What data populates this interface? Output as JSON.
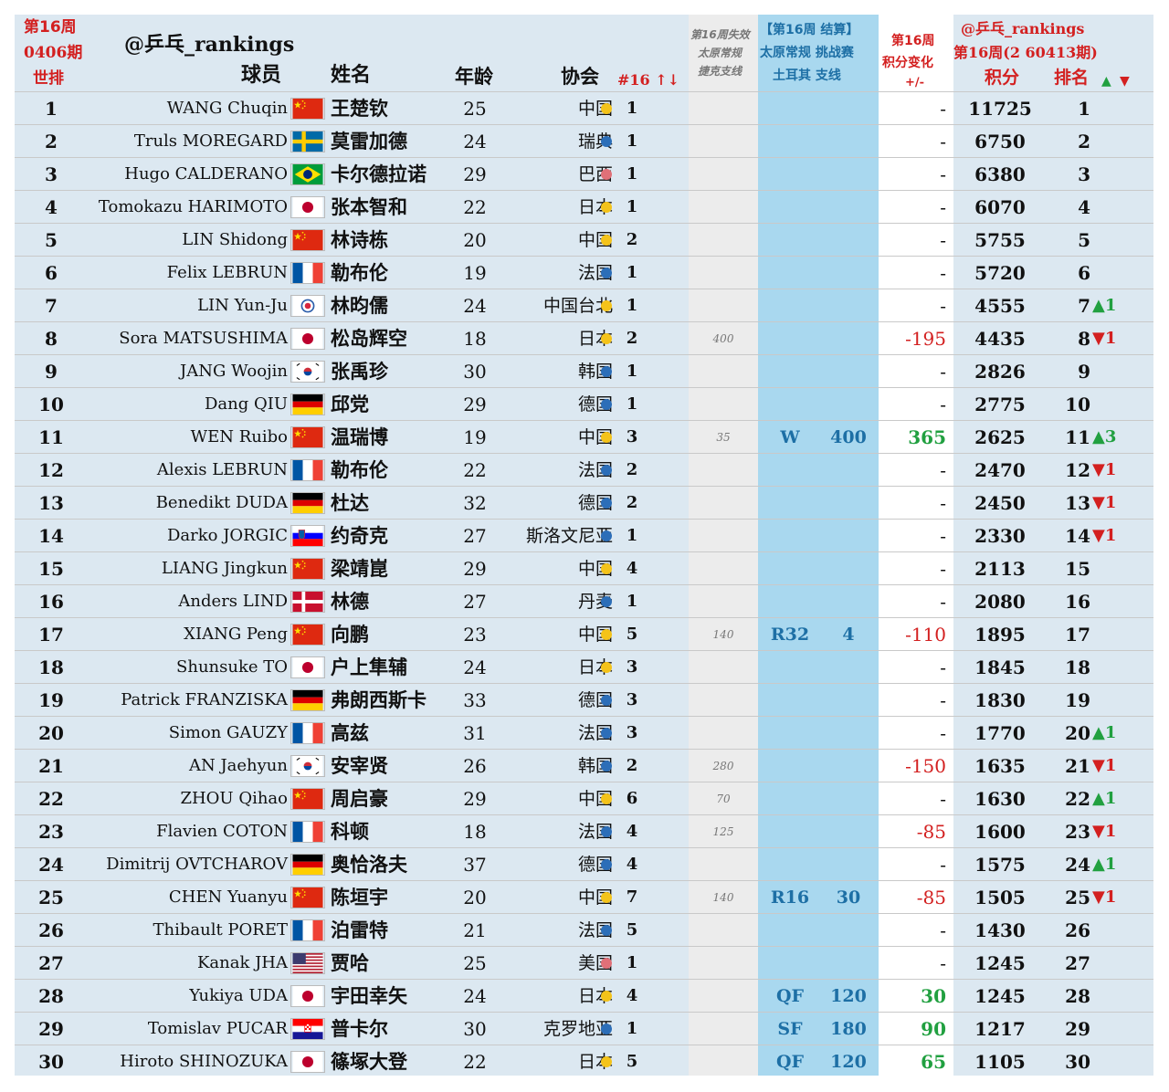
{
  "header": {
    "week_label": "第16周",
    "period_label": "0406期",
    "world_rank_label": "世排",
    "watermark": "@乒乓_rankings",
    "player_label": "球员",
    "name_label": "姓名",
    "age_label": "年龄",
    "assoc_label": "协会",
    "num16_label": "#16 ↑↓",
    "lost_label": [
      "第16周失效",
      "太原常规",
      "捷克支线"
    ],
    "settle_label": [
      "【第16周 结算】",
      "太原常规 挑战赛",
      "土耳其 支线"
    ],
    "change_label": [
      "第16周",
      "积分变化",
      "+/-"
    ],
    "new_watermark": "@乒乓_rankings",
    "new_period": "第16周(2 60413期)",
    "points_label": "积分",
    "newrank_label": "排名",
    "up_arrow": "▲",
    "down_arrow": "▼"
  },
  "colors": {
    "dot_yellow": "#f4c31a",
    "dot_blue": "#2c6eb8",
    "dot_pink": "#e07078",
    "row_bg": "#dce8f1",
    "col_bg": "#a9d8ef",
    "col_gray": "#ececec"
  },
  "rows": [
    {
      "rank": "1",
      "name": "WANG Chuqin",
      "flag": "CN",
      "cname": "王楚钦",
      "age": "25",
      "assoc": "中国",
      "dot": "yellow",
      "n16": "1",
      "lost": "",
      "res": "",
      "gain": "",
      "chg": "-",
      "pts": "11725",
      "nrk": "1",
      "mv": ""
    },
    {
      "rank": "2",
      "name": "Truls MOREGARD",
      "flag": "SE",
      "cname": "莫雷加德",
      "age": "24",
      "assoc": "瑞典",
      "dot": "blue",
      "n16": "1",
      "lost": "",
      "res": "",
      "gain": "",
      "chg": "-",
      "pts": "6750",
      "nrk": "2",
      "mv": ""
    },
    {
      "rank": "3",
      "name": "Hugo CALDERANO",
      "flag": "BR",
      "cname": "卡尔德拉诺",
      "age": "29",
      "assoc": "巴西",
      "dot": "pink",
      "n16": "1",
      "lost": "",
      "res": "",
      "gain": "",
      "chg": "-",
      "pts": "6380",
      "nrk": "3",
      "mv": ""
    },
    {
      "rank": "4",
      "name": "Tomokazu HARIMOTO",
      "flag": "JP",
      "cname": "张本智和",
      "age": "22",
      "assoc": "日本",
      "dot": "yellow",
      "n16": "1",
      "lost": "",
      "res": "",
      "gain": "",
      "chg": "-",
      "pts": "6070",
      "nrk": "4",
      "mv": ""
    },
    {
      "rank": "5",
      "name": "LIN Shidong",
      "flag": "CN",
      "cname": "林诗栋",
      "age": "20",
      "assoc": "中国",
      "dot": "yellow",
      "n16": "2",
      "lost": "",
      "res": "",
      "gain": "",
      "chg": "-",
      "pts": "5755",
      "nrk": "5",
      "mv": ""
    },
    {
      "rank": "6",
      "name": "Felix LEBRUN",
      "flag": "FR",
      "cname": "勒布伦",
      "age": "19",
      "assoc": "法国",
      "dot": "blue",
      "n16": "1",
      "lost": "",
      "res": "",
      "gain": "",
      "chg": "-",
      "pts": "5720",
      "nrk": "6",
      "mv": ""
    },
    {
      "rank": "7",
      "name": "LIN Yun-Ju",
      "flag": "TPE",
      "cname": "林昀儒",
      "age": "24",
      "assoc": "中国台北",
      "dot": "yellow",
      "n16": "1",
      "lost": "",
      "res": "",
      "gain": "",
      "chg": "-",
      "pts": "4555",
      "nrk": "7",
      "mv": "▲1",
      "mvdir": "up"
    },
    {
      "rank": "8",
      "name": "Sora MATSUSHIMA",
      "flag": "JP",
      "cname": "松岛辉空",
      "age": "18",
      "assoc": "日本",
      "dot": "yellow",
      "n16": "2",
      "lost": "400",
      "res": "",
      "gain": "",
      "chg": "-195",
      "pts": "4435",
      "nrk": "8",
      "mv": "▼1",
      "mvdir": "down"
    },
    {
      "rank": "9",
      "name": "JANG Woojin",
      "flag": "KR",
      "cname": "张禹珍",
      "age": "30",
      "assoc": "韩国",
      "dot": "blue",
      "n16": "1",
      "lost": "",
      "res": "",
      "gain": "",
      "chg": "-",
      "pts": "2826",
      "nrk": "9",
      "mv": ""
    },
    {
      "rank": "10",
      "name": "Dang QIU",
      "flag": "DE",
      "cname": "邱党",
      "age": "29",
      "assoc": "德国",
      "dot": "blue",
      "n16": "1",
      "lost": "",
      "res": "",
      "gain": "",
      "chg": "-",
      "pts": "2775",
      "nrk": "10",
      "mv": ""
    },
    {
      "rank": "11",
      "name": "WEN Ruibo",
      "flag": "CN",
      "cname": "温瑞博",
      "age": "19",
      "assoc": "中国",
      "dot": "yellow",
      "n16": "3",
      "lost": "35",
      "res": "W",
      "gain": "400",
      "chg": "365",
      "pts": "2625",
      "nrk": "11",
      "mv": "▲3",
      "mvdir": "up"
    },
    {
      "rank": "12",
      "name": "Alexis LEBRUN",
      "flag": "FR",
      "cname": "勒布伦",
      "age": "22",
      "assoc": "法国",
      "dot": "blue",
      "n16": "2",
      "lost": "",
      "res": "",
      "gain": "",
      "chg": "-",
      "pts": "2470",
      "nrk": "12",
      "mv": "▼1",
      "mvdir": "down"
    },
    {
      "rank": "13",
      "name": "Benedikt DUDA",
      "flag": "DE",
      "cname": "杜达",
      "age": "32",
      "assoc": "德国",
      "dot": "blue",
      "n16": "2",
      "lost": "",
      "res": "",
      "gain": "",
      "chg": "-",
      "pts": "2450",
      "nrk": "13",
      "mv": "▼1",
      "mvdir": "down"
    },
    {
      "rank": "14",
      "name": "Darko JORGIC",
      "flag": "SI",
      "cname": "约奇克",
      "age": "27",
      "assoc": "斯洛文尼亚",
      "dot": "blue",
      "n16": "1",
      "lost": "",
      "res": "",
      "gain": "",
      "chg": "-",
      "pts": "2330",
      "nrk": "14",
      "mv": "▼1",
      "mvdir": "down"
    },
    {
      "rank": "15",
      "name": "LIANG Jingkun",
      "flag": "CN",
      "cname": "梁靖崑",
      "age": "29",
      "assoc": "中国",
      "dot": "yellow",
      "n16": "4",
      "lost": "",
      "res": "",
      "gain": "",
      "chg": "-",
      "pts": "2113",
      "nrk": "15",
      "mv": ""
    },
    {
      "rank": "16",
      "name": "Anders LIND",
      "flag": "DK",
      "cname": "林德",
      "age": "27",
      "assoc": "丹麦",
      "dot": "blue",
      "n16": "1",
      "lost": "",
      "res": "",
      "gain": "",
      "chg": "-",
      "pts": "2080",
      "nrk": "16",
      "mv": ""
    },
    {
      "rank": "17",
      "name": "XIANG Peng",
      "flag": "CN",
      "cname": "向鹏",
      "age": "23",
      "assoc": "中国",
      "dot": "yellow",
      "n16": "5",
      "lost": "140",
      "res": "R32",
      "gain": "4",
      "chg": "-110",
      "pts": "1895",
      "nrk": "17",
      "mv": ""
    },
    {
      "rank": "18",
      "name": "Shunsuke TO",
      "flag": "JP",
      "cname": "户上隼辅",
      "age": "24",
      "assoc": "日本",
      "dot": "yellow",
      "n16": "3",
      "lost": "",
      "res": "",
      "gain": "",
      "chg": "-",
      "pts": "1845",
      "nrk": "18",
      "mv": ""
    },
    {
      "rank": "19",
      "name": "Patrick FRANZISKA",
      "flag": "DE",
      "cname": "弗朗西斯卡",
      "age": "33",
      "assoc": "德国",
      "dot": "blue",
      "n16": "3",
      "lost": "",
      "res": "",
      "gain": "",
      "chg": "-",
      "pts": "1830",
      "nrk": "19",
      "mv": ""
    },
    {
      "rank": "20",
      "name": "Simon GAUZY",
      "flag": "FR",
      "cname": "高兹",
      "age": "31",
      "assoc": "法国",
      "dot": "blue",
      "n16": "3",
      "lost": "",
      "res": "",
      "gain": "",
      "chg": "-",
      "pts": "1770",
      "nrk": "20",
      "mv": "▲1",
      "mvdir": "up"
    },
    {
      "rank": "21",
      "name": "AN Jaehyun",
      "flag": "KR",
      "cname": "安宰贤",
      "age": "26",
      "assoc": "韩国",
      "dot": "blue",
      "n16": "2",
      "lost": "280",
      "res": "",
      "gain": "",
      "chg": "-150",
      "pts": "1635",
      "nrk": "21",
      "mv": "▼1",
      "mvdir": "down"
    },
    {
      "rank": "22",
      "name": "ZHOU Qihao",
      "flag": "CN",
      "cname": "周启豪",
      "age": "29",
      "assoc": "中国",
      "dot": "yellow",
      "n16": "6",
      "lost": "70",
      "res": "",
      "gain": "",
      "chg": "-",
      "pts": "1630",
      "nrk": "22",
      "mv": "▲1",
      "mvdir": "up"
    },
    {
      "rank": "23",
      "name": "Flavien COTON",
      "flag": "FR",
      "cname": "科顿",
      "age": "18",
      "assoc": "法国",
      "dot": "blue",
      "n16": "4",
      "lost": "125",
      "res": "",
      "gain": "",
      "chg": "-85",
      "pts": "1600",
      "nrk": "23",
      "mv": "▼1",
      "mvdir": "down"
    },
    {
      "rank": "24",
      "name": "Dimitrij OVTCHAROV",
      "flag": "DE",
      "cname": "奥恰洛夫",
      "age": "37",
      "assoc": "德国",
      "dot": "blue",
      "n16": "4",
      "lost": "",
      "res": "",
      "gain": "",
      "chg": "-",
      "pts": "1575",
      "nrk": "24",
      "mv": "▲1",
      "mvdir": "up"
    },
    {
      "rank": "25",
      "name": "CHEN Yuanyu",
      "flag": "CN",
      "cname": "陈垣宇",
      "age": "20",
      "assoc": "中国",
      "dot": "yellow",
      "n16": "7",
      "lost": "140",
      "res": "R16",
      "gain": "30",
      "chg": "-85",
      "pts": "1505",
      "nrk": "25",
      "mv": "▼1",
      "mvdir": "down"
    },
    {
      "rank": "26",
      "name": "Thibault PORET",
      "flag": "FR",
      "cname": "泊雷特",
      "age": "21",
      "assoc": "法国",
      "dot": "blue",
      "n16": "5",
      "lost": "",
      "res": "",
      "gain": "",
      "chg": "-",
      "pts": "1430",
      "nrk": "26",
      "mv": ""
    },
    {
      "rank": "27",
      "name": "Kanak JHA",
      "flag": "US",
      "cname": "贾哈",
      "age": "25",
      "assoc": "美国",
      "dot": "pink",
      "n16": "1",
      "lost": "",
      "res": "",
      "gain": "",
      "chg": "-",
      "pts": "1245",
      "nrk": "27",
      "mv": ""
    },
    {
      "rank": "28",
      "name": "Yukiya UDA",
      "flag": "JP",
      "cname": "宇田幸矢",
      "age": "24",
      "assoc": "日本",
      "dot": "yellow",
      "n16": "4",
      "lost": "",
      "res": "QF",
      "gain": "120",
      "chg": "30",
      "pts": "1245",
      "nrk": "28",
      "mv": ""
    },
    {
      "rank": "29",
      "name": "Tomislav PUCAR",
      "flag": "HR",
      "cname": "普卡尔",
      "age": "30",
      "assoc": "克罗地亚",
      "dot": "blue",
      "n16": "1",
      "lost": "",
      "res": "SF",
      "gain": "180",
      "chg": "90",
      "pts": "1217",
      "nrk": "29",
      "mv": ""
    },
    {
      "rank": "30",
      "name": "Hiroto SHINOZUKA",
      "flag": "JP",
      "cname": "篠塚大登",
      "age": "22",
      "assoc": "日本",
      "dot": "yellow",
      "n16": "5",
      "lost": "",
      "res": "QF",
      "gain": "120",
      "chg": "65",
      "pts": "1105",
      "nrk": "30",
      "mv": ""
    }
  ]
}
